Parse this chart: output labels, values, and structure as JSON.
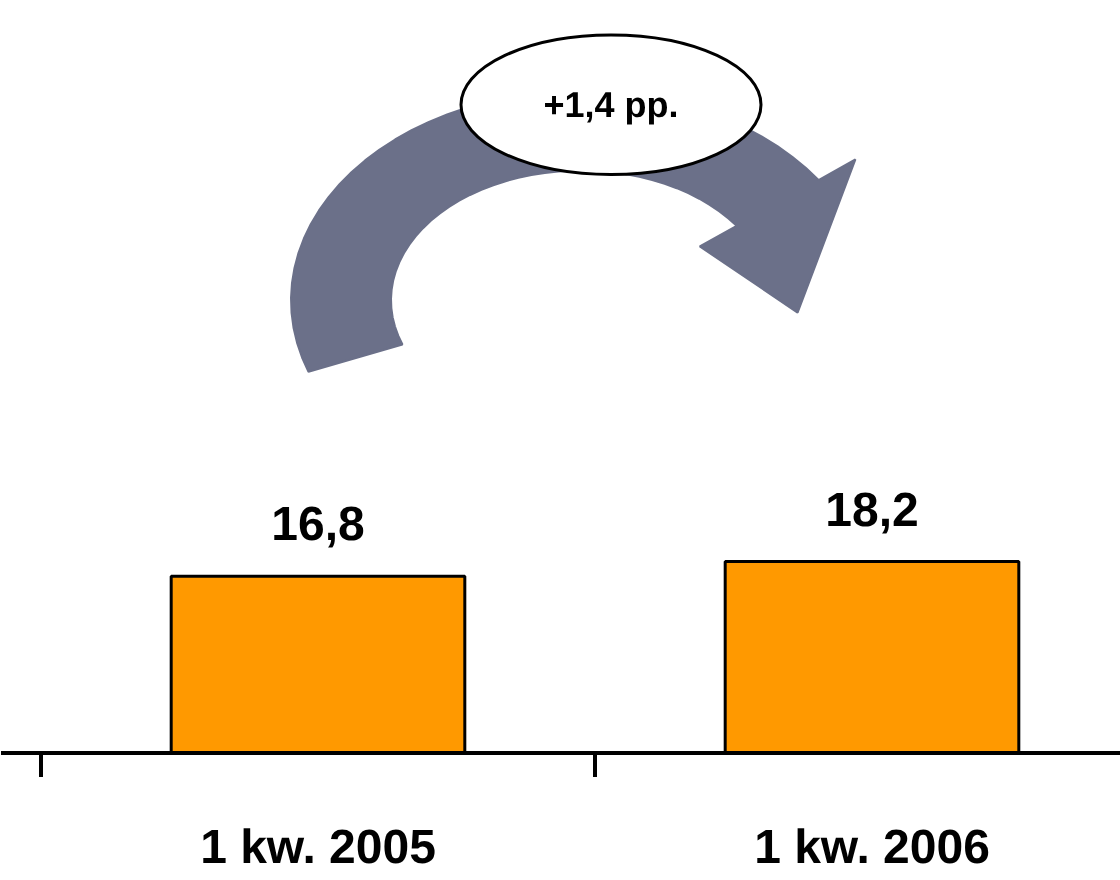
{
  "chart_data": {
    "type": "bar",
    "categories": [
      "1 kw. 2005",
      "1 kw. 2006"
    ],
    "values": [
      16.8,
      18.2
    ],
    "color": "#ff9900",
    "value_labels": [
      "16,8",
      "18,2"
    ],
    "annotations": [
      "+1,4 pp."
    ]
  }
}
